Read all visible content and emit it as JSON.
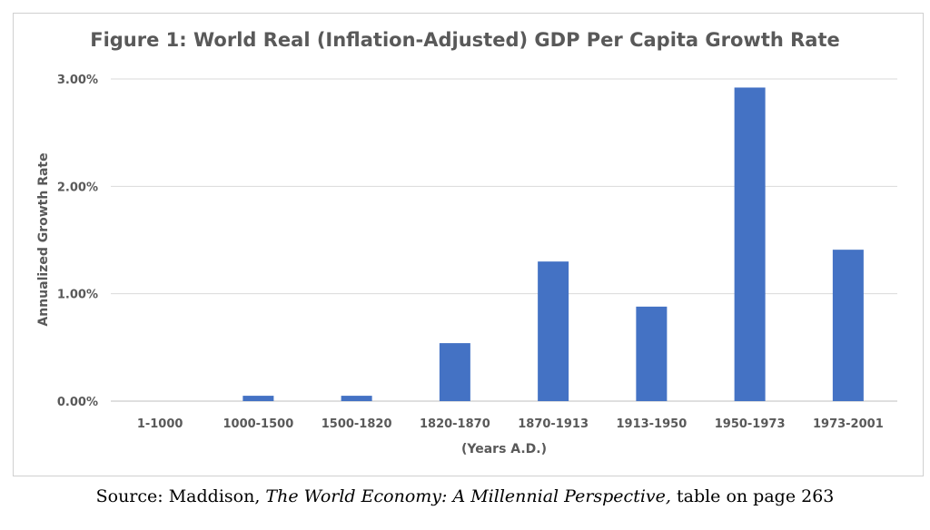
{
  "chart_data": {
    "type": "bar",
    "title": "Figure 1: World Real (Inflation-Adjusted) GDP Per Capita Growth Rate",
    "xlabel": "(Years A.D.)",
    "ylabel": "Annualized Growth Rate",
    "categories": [
      "1-1000",
      "1000-1500",
      "1500-1820",
      "1820-1870",
      "1870-1913",
      "1913-1950",
      "1950-1973",
      "1973-2001"
    ],
    "values": [
      0.0,
      0.05,
      0.05,
      0.54,
      1.3,
      0.88,
      2.92,
      1.41
    ],
    "yticks": [
      "0.00%",
      "1.00%",
      "2.00%",
      "3.00%"
    ],
    "ylim": [
      0,
      3
    ],
    "grid": true,
    "bar_color": "#4472c4"
  },
  "source": {
    "prefix": "Source: Maddison, ",
    "work": "The World Economy: A Millennial Perspective,",
    "suffix": " table on page 263"
  }
}
